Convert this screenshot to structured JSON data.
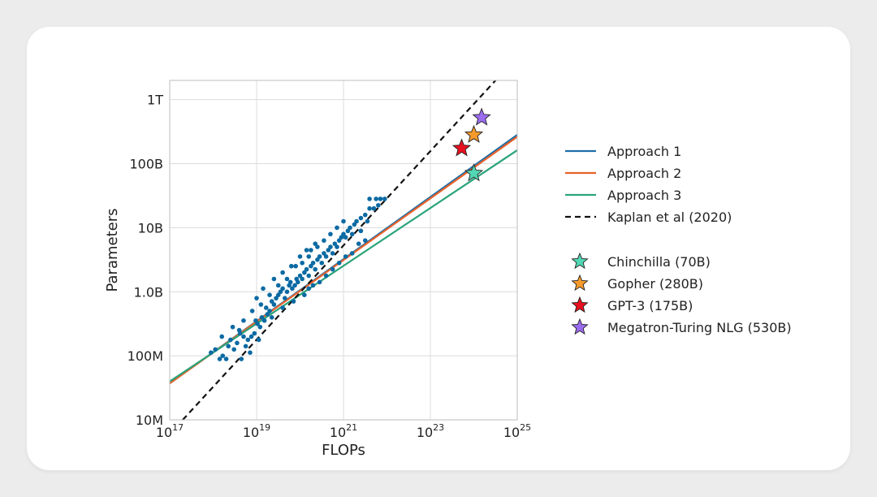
{
  "colors": {
    "approach1": "#1f6fa8",
    "approach2": "#e8622a",
    "approach3": "#2aa47a",
    "kaplan": "#111111",
    "scatter": "#0b6aa3",
    "chinchilla": "#52d6b3",
    "gopher": "#f59a2b",
    "gpt3": "#e8101e",
    "megatron": "#9b6cf0",
    "grid": "#dcdcdc",
    "background": "#ececec"
  },
  "chart_data": {
    "type": "scatter",
    "xlabel": "FLOPs",
    "ylabel": "Parameters",
    "x_scale": "log",
    "y_scale": "log",
    "xlim_log10": [
      17,
      25
    ],
    "ylim_log10": [
      7,
      12.3
    ],
    "x_ticks": [
      {
        "log10": 17,
        "base": "10",
        "exp": "17"
      },
      {
        "log10": 19,
        "base": "10",
        "exp": "19"
      },
      {
        "log10": 21,
        "base": "10",
        "exp": "21"
      },
      {
        "log10": 23,
        "base": "10",
        "exp": "23"
      },
      {
        "log10": 25,
        "base": "10",
        "exp": "25"
      }
    ],
    "y_ticks": [
      {
        "log10": 7,
        "label": "10M"
      },
      {
        "log10": 8,
        "label": "100M"
      },
      {
        "log10": 9,
        "label": "1.0B"
      },
      {
        "log10": 10,
        "label": "10B"
      },
      {
        "log10": 11,
        "label": "100B"
      },
      {
        "log10": 12,
        "label": "1T"
      }
    ],
    "grid": true,
    "legend_position": "right",
    "lines": [
      {
        "name": "Approach 1",
        "key": "approach1",
        "style": "solid",
        "x_log10": [
          17,
          25
        ],
        "y_log10": [
          7.57,
          11.45
        ]
      },
      {
        "name": "Approach 2",
        "key": "approach2",
        "style": "solid",
        "x_log10": [
          17,
          25
        ],
        "y_log10": [
          7.57,
          11.42
        ]
      },
      {
        "name": "Approach 3",
        "key": "approach3",
        "style": "solid",
        "x_log10": [
          17,
          25
        ],
        "y_log10": [
          7.6,
          11.21
        ]
      },
      {
        "name": "Kaplan et al (2020)",
        "key": "kaplan",
        "style": "dashed",
        "x_log10": [
          17.3,
          24.5
        ],
        "y_log10": [
          7.0,
          12.3
        ]
      }
    ],
    "scatter_points_log10": [
      [
        17.95,
        8.05
      ],
      [
        18.05,
        8.1
      ],
      [
        18.15,
        7.95
      ],
      [
        18.22,
        8.0
      ],
      [
        18.3,
        7.95
      ],
      [
        18.35,
        8.15
      ],
      [
        18.4,
        8.25
      ],
      [
        18.48,
        8.1
      ],
      [
        18.55,
        8.2
      ],
      [
        18.6,
        8.4
      ],
      [
        18.62,
        8.35
      ],
      [
        18.7,
        8.3
      ],
      [
        18.75,
        8.15
      ],
      [
        18.8,
        8.25
      ],
      [
        18.88,
        8.3
      ],
      [
        18.95,
        8.35
      ],
      [
        18.98,
        8.55
      ],
      [
        19.02,
        8.5
      ],
      [
        19.05,
        8.25
      ],
      [
        19.08,
        8.45
      ],
      [
        19.12,
        8.6
      ],
      [
        19.18,
        8.55
      ],
      [
        19.22,
        8.75
      ],
      [
        19.25,
        8.65
      ],
      [
        19.3,
        8.7
      ],
      [
        19.35,
        8.85
      ],
      [
        19.4,
        8.8
      ],
      [
        19.45,
        8.9
      ],
      [
        19.5,
        8.95
      ],
      [
        19.55,
        9.0
      ],
      [
        19.6,
        9.05
      ],
      [
        19.65,
        8.9
      ],
      [
        19.7,
        9.0
      ],
      [
        19.75,
        9.1
      ],
      [
        19.78,
        9.15
      ],
      [
        19.82,
        9.05
      ],
      [
        19.88,
        9.1
      ],
      [
        19.92,
        9.2
      ],
      [
        19.95,
        9.15
      ],
      [
        20.0,
        9.25
      ],
      [
        20.05,
        9.2
      ],
      [
        20.1,
        9.3
      ],
      [
        20.15,
        9.35
      ],
      [
        20.2,
        9.25
      ],
      [
        20.25,
        9.4
      ],
      [
        20.3,
        9.45
      ],
      [
        20.35,
        9.35
      ],
      [
        20.4,
        9.5
      ],
      [
        20.45,
        9.55
      ],
      [
        20.5,
        9.45
      ],
      [
        20.55,
        9.6
      ],
      [
        20.6,
        9.55
      ],
      [
        20.65,
        9.65
      ],
      [
        20.7,
        9.7
      ],
      [
        20.75,
        9.6
      ],
      [
        20.8,
        9.75
      ],
      [
        20.85,
        9.7
      ],
      [
        20.9,
        9.8
      ],
      [
        20.95,
        9.85
      ],
      [
        21.0,
        9.9
      ],
      [
        21.05,
        9.85
      ],
      [
        21.1,
        9.95
      ],
      [
        21.15,
        10.0
      ],
      [
        21.2,
        9.9
      ],
      [
        21.25,
        10.05
      ],
      [
        21.3,
        10.1
      ],
      [
        21.4,
        10.15
      ],
      [
        21.5,
        10.2
      ],
      [
        21.6,
        10.3
      ],
      [
        21.7,
        10.3
      ],
      [
        21.8,
        10.35
      ],
      [
        21.95,
        10.45
      ],
      [
        20.1,
        8.95
      ],
      [
        20.2,
        9.05
      ],
      [
        20.3,
        9.1
      ],
      [
        20.45,
        9.15
      ],
      [
        20.6,
        9.25
      ],
      [
        20.75,
        9.35
      ],
      [
        20.9,
        9.45
      ],
      [
        21.05,
        9.55
      ],
      [
        21.2,
        9.6
      ],
      [
        21.35,
        9.75
      ],
      [
        21.5,
        9.8
      ],
      [
        19.1,
        8.8
      ],
      [
        19.3,
        8.95
      ],
      [
        19.5,
        9.1
      ],
      [
        19.7,
        9.2
      ],
      [
        19.9,
        9.4
      ],
      [
        20.05,
        9.45
      ],
      [
        20.2,
        9.55
      ],
      [
        20.4,
        9.7
      ],
      [
        20.55,
        9.8
      ],
      [
        20.7,
        9.9
      ],
      [
        20.85,
        10.0
      ],
      [
        21.0,
        10.1
      ],
      [
        18.2,
        8.3
      ],
      [
        18.45,
        8.45
      ],
      [
        18.7,
        8.55
      ],
      [
        18.9,
        8.7
      ],
      [
        19.0,
        8.9
      ],
      [
        19.15,
        9.05
      ],
      [
        19.4,
        9.2
      ],
      [
        19.6,
        9.3
      ],
      [
        19.8,
        9.4
      ],
      [
        20.0,
        9.55
      ],
      [
        20.15,
        9.65
      ],
      [
        20.35,
        9.75
      ],
      [
        21.6,
        10.45
      ],
      [
        21.75,
        10.45
      ],
      [
        21.85,
        10.45
      ],
      [
        21.55,
        10.1
      ],
      [
        21.4,
        9.95
      ],
      [
        18.85,
        8.05
      ],
      [
        18.65,
        7.95
      ],
      [
        19.35,
        8.6
      ],
      [
        19.6,
        8.75
      ],
      [
        19.85,
        8.85
      ],
      [
        20.25,
        9.65
      ]
    ],
    "stars": [
      {
        "name": "Chinchilla (70B)",
        "key": "chinchilla",
        "x_log10": 24.0,
        "y_log10": 10.85
      },
      {
        "name": "Gopher (280B)",
        "key": "gopher",
        "x_log10": 24.0,
        "y_log10": 11.45
      },
      {
        "name": "GPT-3 (175B)",
        "key": "gpt3",
        "x_log10": 23.72,
        "y_log10": 11.24
      },
      {
        "name": "Megatron-Turing NLG (530B)",
        "key": "megatron",
        "x_log10": 24.18,
        "y_log10": 11.72
      }
    ]
  },
  "legend": {
    "lines": [
      {
        "label": "Approach 1",
        "key": "approach1",
        "style": "solid"
      },
      {
        "label": "Approach 2",
        "key": "approach2",
        "style": "solid"
      },
      {
        "label": "Approach 3",
        "key": "approach3",
        "style": "solid"
      },
      {
        "label": "Kaplan et al (2020)",
        "key": "kaplan",
        "style": "dashed"
      }
    ],
    "stars": [
      {
        "label": "Chinchilla (70B)",
        "key": "chinchilla"
      },
      {
        "label": "Gopher (280B)",
        "key": "gopher"
      },
      {
        "label": "GPT-3 (175B)",
        "key": "gpt3"
      },
      {
        "label": "Megatron-Turing NLG (530B)",
        "key": "megatron"
      }
    ]
  }
}
